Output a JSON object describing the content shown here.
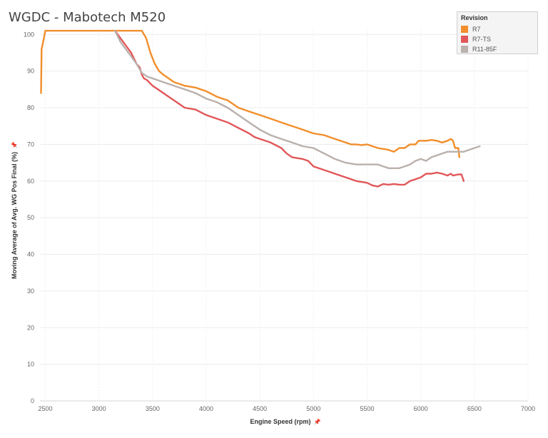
{
  "chart_data": {
    "type": "line",
    "title": "WGDC - Mabotech M520",
    "xlabel": "Engine Speed (rpm)",
    "ylabel": "Moving Average of Avg. WG Pos Final (%)",
    "xlim": [
      2450,
      7000
    ],
    "ylim": [
      0,
      102
    ],
    "xticks": [
      2500,
      3000,
      3500,
      4000,
      4500,
      5000,
      5500,
      6000,
      6500,
      7000
    ],
    "yticks": [
      0,
      10,
      20,
      30,
      40,
      50,
      60,
      70,
      80,
      90,
      100
    ],
    "grid": true,
    "legend": {
      "title": "Revision",
      "position": "top-right"
    },
    "series": [
      {
        "name": "R7",
        "color": "#f28e2b",
        "points": [
          [
            2460,
            84
          ],
          [
            2465,
            96
          ],
          [
            2480,
            98
          ],
          [
            2500,
            101
          ],
          [
            2510,
            101
          ],
          [
            3000,
            101
          ],
          [
            3400,
            101
          ],
          [
            3440,
            99
          ],
          [
            3480,
            95
          ],
          [
            3520,
            92
          ],
          [
            3560,
            90
          ],
          [
            3600,
            89
          ],
          [
            3650,
            88
          ],
          [
            3700,
            87
          ],
          [
            3800,
            86
          ],
          [
            3900,
            85.5
          ],
          [
            4000,
            84.5
          ],
          [
            4100,
            83
          ],
          [
            4200,
            82
          ],
          [
            4300,
            80
          ],
          [
            4400,
            79
          ],
          [
            4500,
            78
          ],
          [
            4600,
            77
          ],
          [
            4700,
            76
          ],
          [
            4800,
            75
          ],
          [
            4900,
            74
          ],
          [
            5000,
            73
          ],
          [
            5100,
            72.5
          ],
          [
            5200,
            71.5
          ],
          [
            5300,
            70.5
          ],
          [
            5350,
            70
          ],
          [
            5400,
            70
          ],
          [
            5450,
            69.8
          ],
          [
            5500,
            70
          ],
          [
            5550,
            69.5
          ],
          [
            5600,
            69
          ],
          [
            5700,
            68.5
          ],
          [
            5750,
            68
          ],
          [
            5800,
            69
          ],
          [
            5850,
            69
          ],
          [
            5900,
            70
          ],
          [
            5950,
            70
          ],
          [
            5980,
            71
          ],
          [
            6000,
            71
          ],
          [
            6050,
            71
          ],
          [
            6100,
            71.2
          ],
          [
            6150,
            71
          ],
          [
            6200,
            70.5
          ],
          [
            6250,
            71
          ],
          [
            6280,
            71.5
          ],
          [
            6300,
            71
          ],
          [
            6320,
            69
          ],
          [
            6350,
            69
          ],
          [
            6360,
            66.5
          ]
        ]
      },
      {
        "name": "R7-TS",
        "color": "#e15759",
        "points": [
          [
            3150,
            101
          ],
          [
            3200,
            99
          ],
          [
            3250,
            97
          ],
          [
            3300,
            95
          ],
          [
            3350,
            92
          ],
          [
            3380,
            91
          ],
          [
            3400,
            89
          ],
          [
            3420,
            88
          ],
          [
            3450,
            87.5
          ],
          [
            3500,
            86
          ],
          [
            3550,
            85
          ],
          [
            3600,
            84
          ],
          [
            3650,
            83
          ],
          [
            3700,
            82
          ],
          [
            3750,
            81
          ],
          [
            3800,
            80
          ],
          [
            3900,
            79.5
          ],
          [
            4000,
            78
          ],
          [
            4100,
            77
          ],
          [
            4200,
            76
          ],
          [
            4300,
            74.5
          ],
          [
            4400,
            73
          ],
          [
            4450,
            72
          ],
          [
            4500,
            71.5
          ],
          [
            4600,
            70.5
          ],
          [
            4700,
            69
          ],
          [
            4750,
            67.5
          ],
          [
            4800,
            66.5
          ],
          [
            4900,
            66
          ],
          [
            4950,
            65.5
          ],
          [
            5000,
            64
          ],
          [
            5100,
            63
          ],
          [
            5200,
            62
          ],
          [
            5300,
            61
          ],
          [
            5400,
            60
          ],
          [
            5500,
            59.5
          ],
          [
            5550,
            58.8
          ],
          [
            5600,
            58.5
          ],
          [
            5650,
            59.2
          ],
          [
            5700,
            59
          ],
          [
            5750,
            59.2
          ],
          [
            5800,
            59
          ],
          [
            5850,
            59
          ],
          [
            5900,
            60
          ],
          [
            5950,
            60.5
          ],
          [
            6000,
            61
          ],
          [
            6050,
            62
          ],
          [
            6100,
            62
          ],
          [
            6150,
            62.3
          ],
          [
            6200,
            62
          ],
          [
            6250,
            61.5
          ],
          [
            6280,
            62
          ],
          [
            6300,
            61.5
          ],
          [
            6350,
            61.8
          ],
          [
            6380,
            61.8
          ],
          [
            6400,
            60
          ]
        ]
      },
      {
        "name": "R11-85F",
        "color": "#bab0ac",
        "points": [
          [
            3150,
            101
          ],
          [
            3200,
            98
          ],
          [
            3250,
            96
          ],
          [
            3300,
            94
          ],
          [
            3350,
            92
          ],
          [
            3400,
            89.5
          ],
          [
            3450,
            88.5
          ],
          [
            3500,
            88
          ],
          [
            3600,
            87
          ],
          [
            3700,
            86
          ],
          [
            3800,
            85
          ],
          [
            3900,
            84
          ],
          [
            4000,
            82.5
          ],
          [
            4100,
            81.5
          ],
          [
            4200,
            80
          ],
          [
            4300,
            78
          ],
          [
            4400,
            76
          ],
          [
            4500,
            74
          ],
          [
            4600,
            72.5
          ],
          [
            4700,
            71.5
          ],
          [
            4800,
            70.5
          ],
          [
            4900,
            69.5
          ],
          [
            5000,
            69
          ],
          [
            5100,
            67.5
          ],
          [
            5200,
            66
          ],
          [
            5300,
            65
          ],
          [
            5400,
            64.5
          ],
          [
            5500,
            64.5
          ],
          [
            5600,
            64.5
          ],
          [
            5650,
            64
          ],
          [
            5700,
            63.5
          ],
          [
            5750,
            63.5
          ],
          [
            5800,
            63.5
          ],
          [
            5850,
            64
          ],
          [
            5900,
            64.5
          ],
          [
            5950,
            65.5
          ],
          [
            6000,
            66
          ],
          [
            6050,
            65.5
          ],
          [
            6100,
            66.5
          ],
          [
            6150,
            67
          ],
          [
            6200,
            67.5
          ],
          [
            6250,
            68
          ],
          [
            6300,
            68
          ],
          [
            6350,
            68
          ],
          [
            6400,
            68
          ],
          [
            6450,
            68.5
          ],
          [
            6500,
            69
          ],
          [
            6550,
            69.5
          ]
        ]
      }
    ]
  }
}
